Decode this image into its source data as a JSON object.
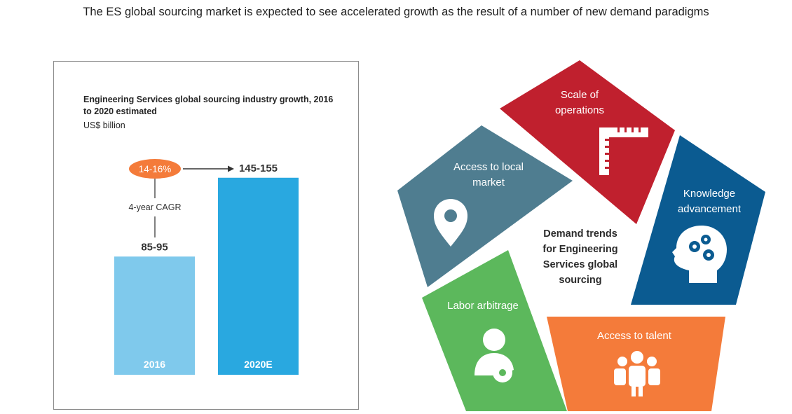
{
  "headline": "The ES global sourcing market is expected to see accelerated growth as the result of a number of new demand paradigms",
  "chart_data": {
    "type": "bar",
    "title": "Engineering Services global sourcing industry growth, 2016 to 2020 estimated",
    "ylabel": "US$ billion",
    "xlabel": "",
    "categories": [
      "2016",
      "2020E"
    ],
    "values": [
      90,
      150
    ],
    "value_labels": [
      "85-95",
      "145-155"
    ],
    "ylim": [
      0,
      160
    ],
    "colors": [
      "#7fc9ec",
      "#29a8e0"
    ],
    "cagr": {
      "value": "14-16%",
      "label": "4-year CAGR",
      "color": "#f47b3a"
    },
    "grid": false
  },
  "pentagon": {
    "center_lines": [
      "Demand trends",
      "for Engineering",
      "Services global",
      "sourcing"
    ],
    "segments": [
      {
        "name": "scale",
        "lines": [
          "Scale of",
          "operations"
        ],
        "color": "#c0202e",
        "icon": "ruler-icon"
      },
      {
        "name": "knowledge",
        "lines": [
          "Knowledge",
          "advancement"
        ],
        "color": "#0b5b91",
        "icon": "head-gears-icon"
      },
      {
        "name": "talent",
        "lines": [
          "Access to talent"
        ],
        "color": "#f47b3a",
        "icon": "people-group-icon"
      },
      {
        "name": "labor",
        "lines": [
          "Labor arbitrage"
        ],
        "color": "#5cb85c",
        "icon": "worker-gear-icon"
      },
      {
        "name": "local",
        "lines": [
          "Access to local",
          "market"
        ],
        "color": "#4f7d90",
        "icon": "map-pin-icon"
      }
    ]
  }
}
